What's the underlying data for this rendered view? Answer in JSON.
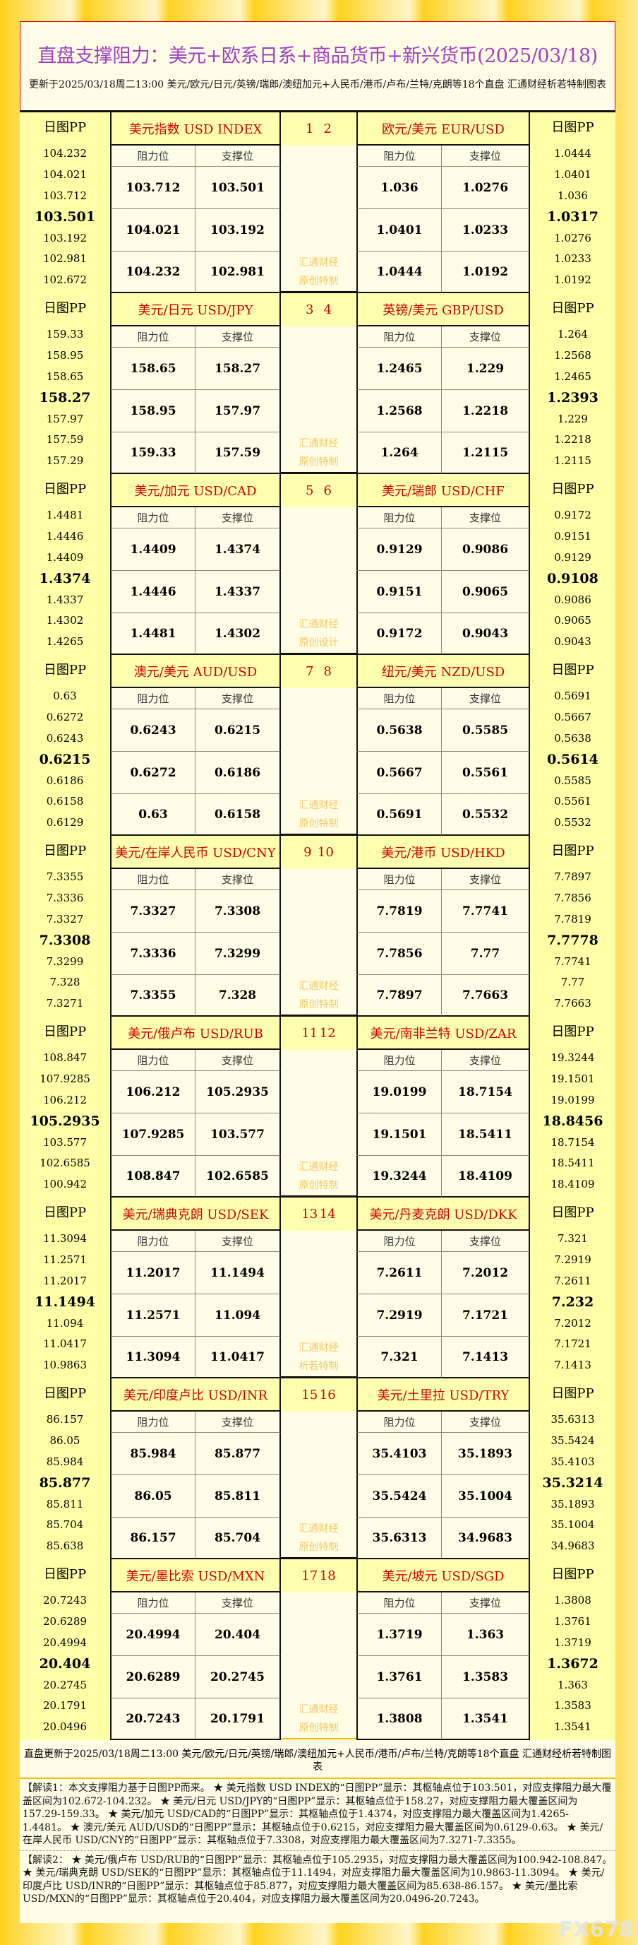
{
  "title": "直盘支撑阻力：美元+欧系日系+商品货币+新兴货币(2025/03/18)",
  "subtitle": "更新于2025/03/18周二13:00 美元/欧元/日元/英镑/瑞郎/澳纽加元+人民币/港币/卢布/兰特/克朗等18个直盘 汇通财经析若特制图表",
  "labels": {
    "pp": "日图PP",
    "resistance": "阻力位",
    "support": "支撑位"
  },
  "blocks": [
    {
      "nums": [
        "1",
        "2"
      ],
      "wm": [
        "汇通财经",
        "原创特制"
      ],
      "left": {
        "name": "美元指数 USD INDEX",
        "pp": [
          "104.232",
          "104.021",
          "103.712",
          "103.501",
          "103.192",
          "102.981",
          "102.672"
        ],
        "rows": [
          [
            "103.712",
            "103.501"
          ],
          [
            "104.021",
            "103.192"
          ],
          [
            "104.232",
            "102.981"
          ]
        ]
      },
      "right": {
        "name": "欧元/美元 EUR/USD",
        "pp": [
          "1.0444",
          "1.0401",
          "1.036",
          "1.0317",
          "1.0276",
          "1.0233",
          "1.0192"
        ],
        "rows": [
          [
            "1.036",
            "1.0276"
          ],
          [
            "1.0401",
            "1.0233"
          ],
          [
            "1.0444",
            "1.0192"
          ]
        ]
      }
    },
    {
      "nums": [
        "3",
        "4"
      ],
      "wm": [
        "汇通财经",
        "原创特制"
      ],
      "left": {
        "name": "美元/日元 USD/JPY",
        "pp": [
          "159.33",
          "158.95",
          "158.65",
          "158.27",
          "157.97",
          "157.59",
          "157.29"
        ],
        "rows": [
          [
            "158.65",
            "158.27"
          ],
          [
            "158.95",
            "157.97"
          ],
          [
            "159.33",
            "157.59"
          ]
        ]
      },
      "right": {
        "name": "英镑/美元 GBP/USD",
        "pp": [
          "1.264",
          "1.2568",
          "1.2465",
          "1.2393",
          "1.229",
          "1.2218",
          "1.2115"
        ],
        "rows": [
          [
            "1.2465",
            "1.229"
          ],
          [
            "1.2568",
            "1.2218"
          ],
          [
            "1.264",
            "1.2115"
          ]
        ]
      }
    },
    {
      "nums": [
        "5",
        "6"
      ],
      "wm": [
        "汇通财经",
        "原创设计"
      ],
      "left": {
        "name": "美元/加元 USD/CAD",
        "pp": [
          "1.4481",
          "1.4446",
          "1.4409",
          "1.4374",
          "1.4337",
          "1.4302",
          "1.4265"
        ],
        "rows": [
          [
            "1.4409",
            "1.4374"
          ],
          [
            "1.4446",
            "1.4337"
          ],
          [
            "1.4481",
            "1.4302"
          ]
        ]
      },
      "right": {
        "name": "美元/瑞郎 USD/CHF",
        "pp": [
          "0.9172",
          "0.9151",
          "0.9129",
          "0.9108",
          "0.9086",
          "0.9065",
          "0.9043"
        ],
        "rows": [
          [
            "0.9129",
            "0.9086"
          ],
          [
            "0.9151",
            "0.9065"
          ],
          [
            "0.9172",
            "0.9043"
          ]
        ]
      }
    },
    {
      "nums": [
        "7",
        "8"
      ],
      "wm": [
        "汇通财经",
        "原创特制"
      ],
      "left": {
        "name": "澳元/美元 AUD/USD",
        "pp": [
          "0.63",
          "0.6272",
          "0.6243",
          "0.6215",
          "0.6186",
          "0.6158",
          "0.6129"
        ],
        "rows": [
          [
            "0.6243",
            "0.6215"
          ],
          [
            "0.6272",
            "0.6186"
          ],
          [
            "0.63",
            "0.6158"
          ]
        ]
      },
      "right": {
        "name": "纽元/美元 NZD/USD",
        "pp": [
          "0.5691",
          "0.5667",
          "0.5638",
          "0.5614",
          "0.5585",
          "0.5561",
          "0.5532"
        ],
        "rows": [
          [
            "0.5638",
            "0.5585"
          ],
          [
            "0.5667",
            "0.5561"
          ],
          [
            "0.5691",
            "0.5532"
          ]
        ]
      }
    },
    {
      "nums": [
        "9",
        "10"
      ],
      "wm": [
        "汇通财经",
        "原创特制"
      ],
      "left": {
        "name": "美元/在岸人民币 USD/CNY",
        "pp": [
          "7.3355",
          "7.3336",
          "7.3327",
          "7.3308",
          "7.3299",
          "7.328",
          "7.3271"
        ],
        "rows": [
          [
            "7.3327",
            "7.3308"
          ],
          [
            "7.3336",
            "7.3299"
          ],
          [
            "7.3355",
            "7.328"
          ]
        ]
      },
      "right": {
        "name": "美元/港币 USD/HKD",
        "pp": [
          "7.7897",
          "7.7856",
          "7.7819",
          "7.7778",
          "7.7741",
          "7.77",
          "7.7663"
        ],
        "rows": [
          [
            "7.7819",
            "7.7741"
          ],
          [
            "7.7856",
            "7.77"
          ],
          [
            "7.7897",
            "7.7663"
          ]
        ]
      }
    },
    {
      "nums": [
        "11",
        "12"
      ],
      "wm": [
        "汇通财经",
        "原创特制"
      ],
      "left": {
        "name": "美元/俄卢布 USD/RUB",
        "pp": [
          "108.847",
          "107.9285",
          "106.212",
          "105.2935",
          "103.577",
          "102.6585",
          "100.942"
        ],
        "rows": [
          [
            "106.212",
            "105.2935"
          ],
          [
            "107.9285",
            "103.577"
          ],
          [
            "108.847",
            "102.6585"
          ]
        ]
      },
      "right": {
        "name": "美元/南非兰特 USD/ZAR",
        "pp": [
          "19.3244",
          "19.1501",
          "19.0199",
          "18.8456",
          "18.7154",
          "18.5411",
          "18.4109"
        ],
        "rows": [
          [
            "19.0199",
            "18.7154"
          ],
          [
            "19.1501",
            "18.5411"
          ],
          [
            "19.3244",
            "18.4109"
          ]
        ]
      }
    },
    {
      "nums": [
        "13",
        "14"
      ],
      "wm": [
        "汇通财经",
        "析若特制"
      ],
      "left": {
        "name": "美元/瑞典克朗 USD/SEK",
        "pp": [
          "11.3094",
          "11.2571",
          "11.2017",
          "11.1494",
          "11.094",
          "11.0417",
          "10.9863"
        ],
        "rows": [
          [
            "11.2017",
            "11.1494"
          ],
          [
            "11.2571",
            "11.094"
          ],
          [
            "11.3094",
            "11.0417"
          ]
        ]
      },
      "right": {
        "name": "美元/丹麦克朗 USD/DKK",
        "pp": [
          "7.321",
          "7.2919",
          "7.2611",
          "7.232",
          "7.2012",
          "7.1721",
          "7.1413"
        ],
        "rows": [
          [
            "7.2611",
            "7.2012"
          ],
          [
            "7.2919",
            "7.1721"
          ],
          [
            "7.321",
            "7.1413"
          ]
        ]
      }
    },
    {
      "nums": [
        "15",
        "16"
      ],
      "wm": [
        "汇通财经",
        "原创特制"
      ],
      "left": {
        "name": "美元/印度卢比 USD/INR",
        "pp": [
          "86.157",
          "86.05",
          "85.984",
          "85.877",
          "85.811",
          "85.704",
          "85.638"
        ],
        "rows": [
          [
            "85.984",
            "85.877"
          ],
          [
            "86.05",
            "85.811"
          ],
          [
            "86.157",
            "85.704"
          ]
        ]
      },
      "right": {
        "name": "美元/土里拉 USD/TRY",
        "pp": [
          "35.6313",
          "35.5424",
          "35.4103",
          "35.3214",
          "35.1893",
          "35.1004",
          "34.9683"
        ],
        "rows": [
          [
            "35.4103",
            "35.1893"
          ],
          [
            "35.5424",
            "35.1004"
          ],
          [
            "35.6313",
            "34.9683"
          ]
        ]
      }
    },
    {
      "nums": [
        "17",
        "18"
      ],
      "wm": [
        "汇通财经",
        "原创特制"
      ],
      "left": {
        "name": "美元/墨比索 USD/MXN",
        "pp": [
          "20.7243",
          "20.6289",
          "20.4994",
          "20.404",
          "20.2745",
          "20.1791",
          "20.0496"
        ],
        "rows": [
          [
            "20.4994",
            "20.404"
          ],
          [
            "20.6289",
            "20.2745"
          ],
          [
            "20.7243",
            "20.1791"
          ]
        ]
      },
      "right": {
        "name": "美元/坡元 USD/SGD",
        "pp": [
          "1.3808",
          "1.3761",
          "1.3719",
          "1.3672",
          "1.363",
          "1.3583",
          "1.3541"
        ],
        "rows": [
          [
            "1.3719",
            "1.363"
          ],
          [
            "1.3761",
            "1.3583"
          ],
          [
            "1.3808",
            "1.3541"
          ]
        ]
      }
    }
  ],
  "footer": {
    "update": "直盘更新于2025/03/18周二13:00 美元/欧元/日元/英镑/瑞郎/澳纽加元+人民币/港币/卢布/兰特/克朗等18个直盘 汇通财经析若特制图表",
    "note1": "【解读1：本文支撑阻力基于日图PP而来。 ★ 美元指数 USD INDEX的“日图PP”显示：其枢轴点位于103.501，对应支撑阻力最大覆盖区间为102.672-104.232。 ★ 美元/日元 USD/JPY的“日图PP”显示：其枢轴点位于158.27，对应支撑阻力最大覆盖区间为157.29-159.33。 ★ 美元/加元 USD/CAD的“日图PP”显示：其枢轴点位于1.4374，对应支撑阻力最大覆盖区间为1.4265-1.4481。 ★ 澳元/美元 AUD/USD的“日图PP”显示：其枢轴点位于0.6215，对应支撑阻力最大覆盖区间为0.6129-0.63。 ★ 美元/在岸人民币 USD/CNY的“日图PP”显示：其枢轴点位于7.3308，对应支撑阻力最大覆盖区间为7.3271-7.3355。",
    "note2": "【解读2： ★ 美元/俄卢布 USD/RUB的“日图PP”显示：其枢轴点位于105.2935，对应支撑阻力最大覆盖区间为100.942-108.847。 ★ 美元/瑞典克朗 USD/SEK的“日图PP”显示：其枢轴点位于11.1494，对应支撑阻力最大覆盖区间为10.9863-11.3094。 ★ 美元/印度卢比 USD/INR的“日图PP”显示：其枢轴点位于85.877，对应支撑阻力最大覆盖区间为85.638-86.157。 ★ 美元/墨比索 USD/MXN的“日图PP”显示：其枢轴点位于20.404，对应支撑阻力最大覆盖区间为20.0496-20.7243。",
    "watermark": "FX678"
  },
  "colors": {
    "title": "#a040c0",
    "pair_name": "#d00000",
    "watermark": "#f5c860",
    "pp_column": "#ffffa8"
  }
}
